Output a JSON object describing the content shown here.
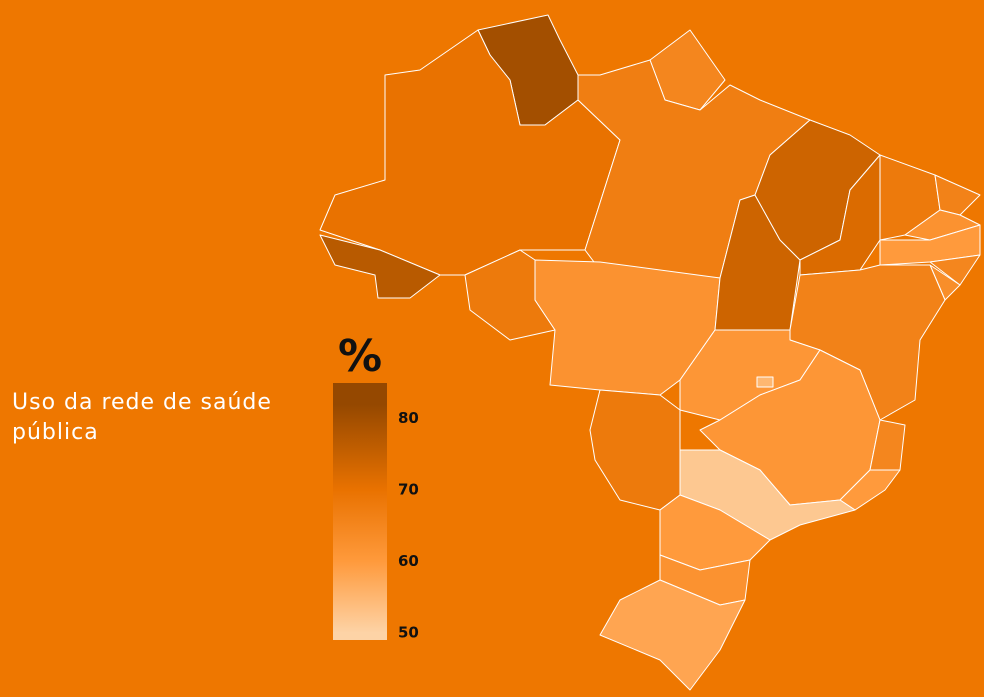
{
  "map": {
    "title": "Uso da rede de saúde pública",
    "legend": {
      "unit": "%",
      "range": [
        49,
        85
      ],
      "ticks": [
        80,
        70,
        60,
        50
      ],
      "colors": [
        {
          "value": 50,
          "color": "#fdd3a6"
        },
        {
          "value": 60,
          "color": "#ff9a3c"
        },
        {
          "value": 70,
          "color": "#e97200"
        },
        {
          "value": 82,
          "color": "#954800"
        }
      ]
    },
    "background": "#ee7700",
    "regions": [
      80,
      70,
      77,
      65,
      67,
      68,
      62,
      74,
      74,
      72,
      68,
      66,
      62,
      60,
      65,
      63,
      66,
      61,
      55,
      61,
      65,
      60,
      52,
      68,
      60,
      62,
      58
    ]
  }
}
